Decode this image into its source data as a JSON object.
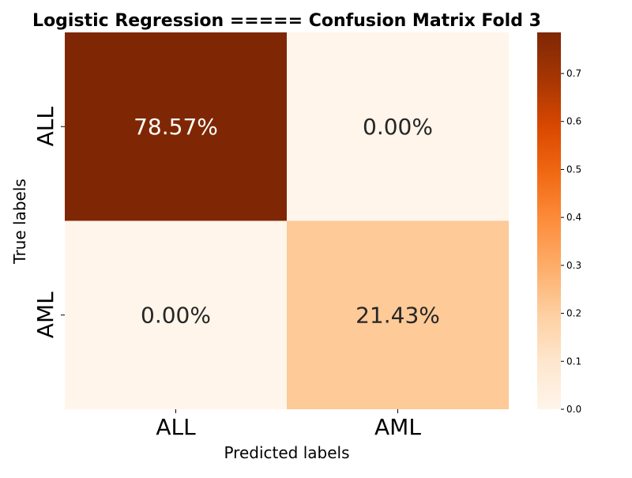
{
  "chart_data": {
    "type": "heatmap",
    "title": "Logistic Regression ===== Confusion Matrix Fold 3",
    "xlabel": "Predicted labels",
    "ylabel": "True labels",
    "x_categories": [
      "ALL",
      "AML"
    ],
    "y_categories": [
      "ALL",
      "AML"
    ],
    "values": [
      [
        0.7857,
        0.0
      ],
      [
        0.0,
        0.2143
      ]
    ],
    "annotations": [
      [
        "78.57%",
        "0.00%"
      ],
      [
        "0.00%",
        "21.43%"
      ]
    ],
    "colorbar": {
      "range": [
        0,
        0.7857
      ],
      "ticks": [
        0.0,
        0.1,
        0.2,
        0.3,
        0.4,
        0.5,
        0.6,
        0.7
      ],
      "tick_labels": [
        "0.0",
        "0.1",
        "0.2",
        "0.3",
        "0.4",
        "0.5",
        "0.6",
        "0.7"
      ],
      "colormap": "Oranges",
      "color_stops": [
        "#fff5eb",
        "#fee6ce",
        "#fdd0a2",
        "#fdae6b",
        "#fd8d3c",
        "#f16913",
        "#d94801",
        "#a63603",
        "#7f2704"
      ]
    },
    "grid": false
  }
}
